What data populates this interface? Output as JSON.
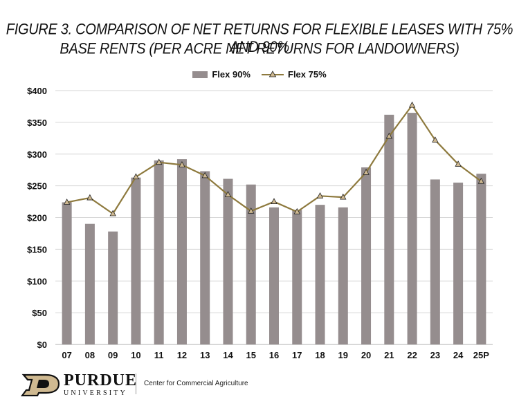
{
  "title_line1": "FIGURE 3. COMPARISON OF NET RETURNS FOR FLEXIBLE LEASES WITH 75% AND 90%",
  "title_line2": "BASE RENTS (PER ACRE NET RETURNS FOR LANDOWNERS)",
  "colors": {
    "bar": "#958D8E",
    "line": "#8E7A3E",
    "marker": "#CFB991",
    "grid": "#d6d6d6"
  },
  "chart_data": {
    "type": "bar",
    "categories": [
      "07",
      "08",
      "09",
      "10",
      "11",
      "12",
      "13",
      "14",
      "15",
      "16",
      "17",
      "18",
      "19",
      "20",
      "21",
      "22",
      "23",
      "24",
      "25P"
    ],
    "series": [
      {
        "name": "Flex 90%",
        "type": "bar",
        "values": [
          224,
          190,
          178,
          263,
          290,
          292,
          273,
          261,
          252,
          216,
          212,
          220,
          216,
          279,
          362,
          365,
          260,
          255,
          269
        ]
      },
      {
        "name": "Flex 75%",
        "type": "line",
        "values": [
          224,
          231,
          206,
          264,
          287,
          283,
          266,
          236,
          210,
          225,
          209,
          234,
          232,
          271,
          328,
          377,
          322,
          284,
          257
        ]
      }
    ],
    "yticks": [
      "$0",
      "$50",
      "$100",
      "$150",
      "$200",
      "$250",
      "$300",
      "$350",
      "$400"
    ],
    "ylim": [
      0,
      400
    ],
    "legend": [
      "Flex 90%",
      "Flex 75%"
    ]
  },
  "footer": {
    "purdue": "PURDUE",
    "university": "UNIVERSITY",
    "center": "Center for Commercial Agriculture"
  }
}
